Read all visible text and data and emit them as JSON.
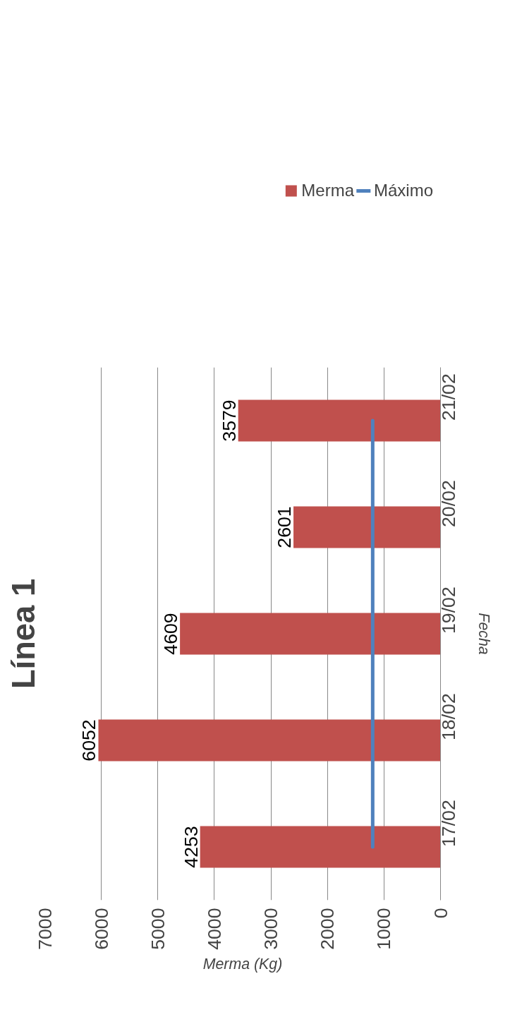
{
  "chart_data": {
    "type": "bar",
    "orientation": "horizontal",
    "title": "Línea 1",
    "xlabel": "Merma (Kg)",
    "ylabel": "Fecha",
    "categories": [
      "21/02",
      "20/02",
      "19/02",
      "18/02",
      "17/02"
    ],
    "series": [
      {
        "name": "Merma",
        "color": "#c0504d",
        "values": [
          3579,
          2601,
          4609,
          6052,
          4253
        ],
        "value_labels": [
          "3579",
          "2601",
          "4609",
          "6052",
          "4253"
        ]
      },
      {
        "name": "Máximo",
        "type": "line",
        "color": "#4f81bd",
        "values": [
          1200,
          1200,
          1200,
          1200,
          1200
        ]
      }
    ],
    "xlim": [
      7000,
      0
    ],
    "xticks": [
      0,
      1000,
      2000,
      3000,
      4000,
      5000,
      6000,
      7000
    ],
    "grid": "x",
    "legend": "top right"
  }
}
